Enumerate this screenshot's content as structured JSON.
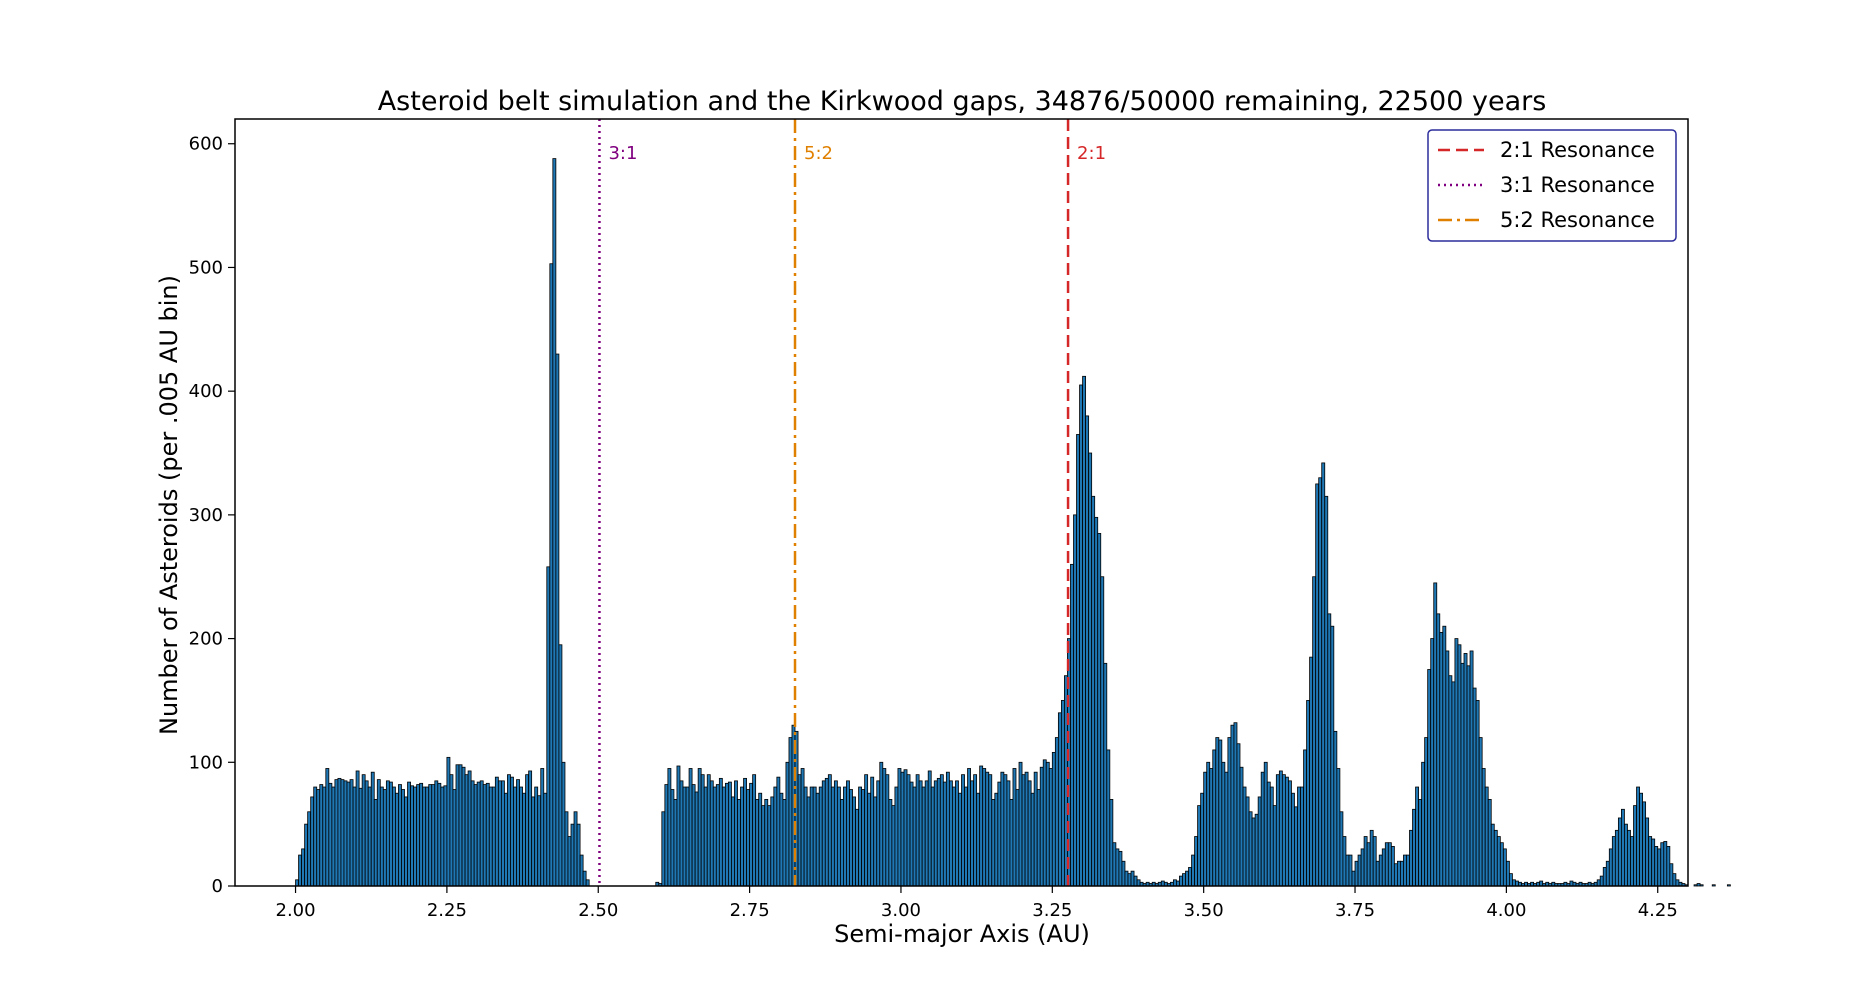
{
  "chart_data": {
    "type": "bar",
    "title": "Asteroid belt simulation and the Kirkwood gaps, 34876/50000 remaining, 22500 years",
    "xlabel": "Semi-major Axis (AU)",
    "ylabel": "Number of Asteroids (per .005 AU bin)",
    "xlim": [
      1.9,
      4.3
    ],
    "ylim": [
      0,
      620
    ],
    "xticks": [
      2.0,
      2.25,
      2.5,
      2.75,
      3.0,
      3.25,
      3.5,
      3.75,
      4.0,
      4.25
    ],
    "xtick_labels": [
      "2.00",
      "2.25",
      "2.50",
      "2.75",
      "3.00",
      "3.25",
      "3.50",
      "3.75",
      "4.00",
      "4.25"
    ],
    "yticks": [
      0,
      100,
      200,
      300,
      400,
      500,
      600
    ],
    "ytick_labels": [
      "0",
      "100",
      "200",
      "300",
      "400",
      "500",
      "600"
    ],
    "bin_width": 0.005,
    "bin_start": 1.98,
    "bar_color": "#1f77b4",
    "bar_edge_color": "#000000",
    "counts": [
      0,
      0,
      0,
      0,
      5,
      25,
      30,
      50,
      60,
      72,
      80,
      78,
      82,
      80,
      95,
      83,
      80,
      86,
      87,
      86,
      85,
      84,
      86,
      80,
      93,
      79,
      90,
      85,
      80,
      92,
      70,
      86,
      80,
      78,
      85,
      84,
      80,
      75,
      82,
      78,
      72,
      84,
      81,
      80,
      82,
      83,
      80,
      80,
      82,
      82,
      85,
      83,
      80,
      81,
      104,
      90,
      78,
      98,
      98,
      96,
      90,
      93,
      85,
      82,
      84,
      85,
      82,
      83,
      80,
      80,
      88,
      85,
      85,
      75,
      90,
      88,
      80,
      86,
      80,
      75,
      90,
      93,
      72,
      80,
      73,
      95,
      75,
      258,
      503,
      588,
      430,
      195,
      100,
      60,
      40,
      50,
      60,
      50,
      25,
      12,
      5,
      0,
      0,
      0,
      0,
      0,
      0,
      0,
      0,
      0,
      0,
      0,
      0,
      0,
      0,
      0,
      0,
      0,
      0,
      0,
      0,
      0,
      0,
      3,
      2,
      60,
      82,
      95,
      78,
      70,
      97,
      85,
      80,
      80,
      95,
      82,
      76,
      95,
      90,
      80,
      90,
      85,
      80,
      82,
      87,
      80,
      83,
      84,
      72,
      85,
      70,
      80,
      87,
      78,
      83,
      90,
      70,
      75,
      65,
      70,
      65,
      72,
      80,
      88,
      75,
      70,
      100,
      120,
      130,
      125,
      90,
      95,
      80,
      72,
      80,
      80,
      75,
      80,
      85,
      87,
      90,
      80,
      85,
      80,
      70,
      80,
      85,
      78,
      72,
      62,
      80,
      78,
      90,
      75,
      88,
      72,
      85,
      100,
      95,
      90,
      70,
      65,
      80,
      95,
      92,
      94,
      90,
      84,
      80,
      90,
      85,
      80,
      85,
      93,
      80,
      85,
      87,
      90,
      84,
      92,
      85,
      80,
      85,
      75,
      90,
      80,
      95,
      85,
      90,
      75,
      97,
      95,
      92,
      90,
      70,
      75,
      84,
      92,
      90,
      85,
      70,
      95,
      78,
      100,
      90,
      92,
      85,
      75,
      92,
      78,
      96,
      102,
      100,
      95,
      108,
      120,
      140,
      150,
      170,
      200,
      260,
      300,
      365,
      405,
      412,
      380,
      350,
      315,
      298,
      285,
      250,
      180,
      110,
      70,
      35,
      30,
      28,
      20,
      12,
      10,
      12,
      8,
      5,
      3,
      2,
      3,
      2,
      3,
      2,
      3,
      4,
      3,
      2,
      3,
      5,
      4,
      8,
      10,
      12,
      15,
      25,
      40,
      65,
      75,
      92,
      100,
      95,
      110,
      120,
      118,
      100,
      92,
      120,
      130,
      132,
      115,
      96,
      80,
      72,
      60,
      55,
      58,
      72,
      92,
      100,
      84,
      80,
      65,
      90,
      93,
      90,
      88,
      85,
      75,
      64,
      80,
      80,
      110,
      150,
      185,
      250,
      325,
      330,
      342,
      315,
      220,
      210,
      125,
      95,
      60,
      40,
      25,
      25,
      12,
      20,
      25,
      30,
      40,
      35,
      45,
      40,
      20,
      25,
      30,
      35,
      35,
      32,
      18,
      20,
      20,
      25,
      25,
      45,
      62,
      80,
      70,
      100,
      120,
      175,
      200,
      245,
      220,
      205,
      210,
      190,
      170,
      165,
      200,
      195,
      180,
      188,
      178,
      190,
      160,
      150,
      120,
      95,
      80,
      70,
      50,
      45,
      40,
      35,
      30,
      20,
      10,
      5,
      4,
      3,
      2,
      3,
      2,
      3,
      2,
      3,
      4,
      2,
      3,
      2,
      3,
      2,
      2,
      2,
      3,
      2,
      4,
      3,
      2,
      3,
      2,
      2,
      3,
      2,
      3,
      5,
      8,
      15,
      20,
      30,
      40,
      45,
      55,
      62,
      50,
      45,
      40,
      65,
      80,
      75,
      68,
      55,
      40,
      38,
      32,
      30,
      35,
      36,
      32,
      18,
      10,
      5,
      3,
      2,
      1,
      0,
      0,
      1,
      2,
      1,
      0,
      0,
      0,
      1,
      0,
      0,
      0,
      0,
      1,
      0,
      0,
      0
    ],
    "resonances": [
      {
        "label": "2:1",
        "legend": "2:1 Resonance",
        "x": 3.276,
        "color": "#d62728",
        "style": "dashed"
      },
      {
        "label": "3:1",
        "legend": "3:1 Resonance",
        "x": 2.502,
        "color": "#800080",
        "style": "dotted"
      },
      {
        "label": "5:2",
        "legend": "5:2 Resonance",
        "x": 2.825,
        "color": "#e08000",
        "style": "dashdot"
      }
    ],
    "legend_position": "top-right"
  }
}
